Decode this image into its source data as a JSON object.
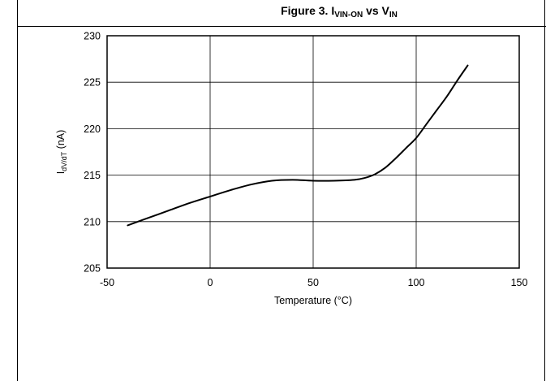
{
  "figure": {
    "title_main": "Figure 3. I",
    "title_sub1": "VIN-ON",
    "title_vs": " vs V",
    "title_sub2": "IN"
  },
  "chart_data": {
    "type": "line",
    "xlabel": "Temperature (°C)",
    "ylabel_main": "I",
    "ylabel_sub": "dV/dT",
    "ylabel_unit": " (nA)",
    "xlim": [
      -50,
      150
    ],
    "ylim": [
      205,
      230
    ],
    "xticks": [
      -50,
      0,
      50,
      100,
      150
    ],
    "yticks": [
      205,
      210,
      215,
      220,
      225,
      230
    ],
    "grid": true,
    "series": [
      {
        "color": "#000000",
        "x": [
          -40,
          -30,
          -20,
          -10,
          0,
          10,
          20,
          30,
          40,
          50,
          60,
          70,
          75,
          80,
          85,
          90,
          95,
          100,
          105,
          110,
          115,
          120,
          125
        ],
        "y": [
          209.6,
          210.4,
          211.2,
          212.0,
          212.7,
          213.4,
          214.0,
          214.4,
          214.5,
          214.4,
          214.4,
          214.5,
          214.7,
          215.1,
          215.8,
          216.8,
          217.9,
          219.0,
          220.5,
          222.0,
          223.5,
          225.2,
          226.8
        ]
      }
    ]
  }
}
